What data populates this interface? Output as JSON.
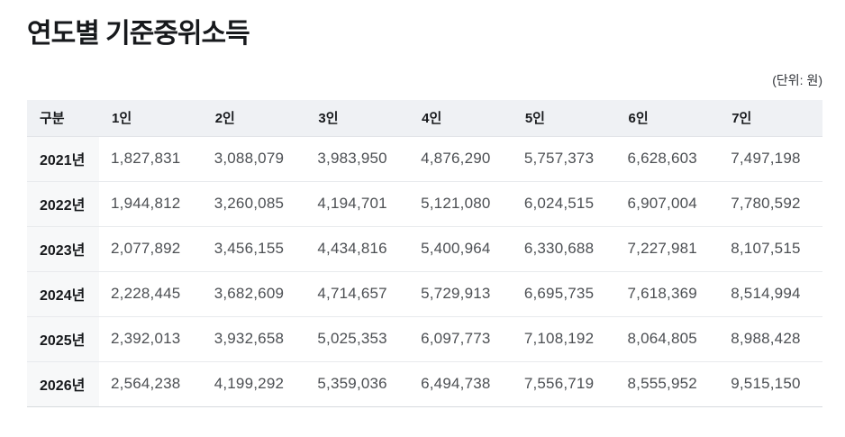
{
  "chart_data": {
    "type": "table",
    "title": "연도별 기준중위소득",
    "unit_note": "(단위: 원)",
    "columns": [
      "구분",
      "1인",
      "2인",
      "3인",
      "4인",
      "5인",
      "6인",
      "7인"
    ],
    "rows": [
      {
        "label": "2021년",
        "values": [
          "1,827,831",
          "3,088,079",
          "3,983,950",
          "4,876,290",
          "5,757,373",
          "6,628,603",
          "7,497,198"
        ]
      },
      {
        "label": "2022년",
        "values": [
          "1,944,812",
          "3,260,085",
          "4,194,701",
          "5,121,080",
          "6,024,515",
          "6,907,004",
          "7,780,592"
        ]
      },
      {
        "label": "2023년",
        "values": [
          "2,077,892",
          "3,456,155",
          "4,434,816",
          "5,400,964",
          "6,330,688",
          "7,227,981",
          "8,107,515"
        ]
      },
      {
        "label": "2024년",
        "values": [
          "2,228,445",
          "3,682,609",
          "4,714,657",
          "5,729,913",
          "6,695,735",
          "7,618,369",
          "8,514,994"
        ]
      },
      {
        "label": "2025년",
        "values": [
          "2,392,013",
          "3,932,658",
          "5,025,353",
          "6,097,773",
          "7,108,192",
          "8,064,805",
          "8,988,428"
        ]
      },
      {
        "label": "2026년",
        "values": [
          "2,564,238",
          "4,199,292",
          "5,359,036",
          "6,494,738",
          "7,556,719",
          "8,555,952",
          "9,515,150"
        ]
      }
    ],
    "layout_hints": {
      "header_row": true,
      "row_label_column": true,
      "unit": "KRW (원)"
    }
  },
  "colors": {
    "header_bg": "#eff1f4",
    "row_label_bg": "#f7f8f9",
    "row_border": "#e8eaed",
    "text_primary": "#17191c",
    "text_number": "#4c4f53"
  }
}
